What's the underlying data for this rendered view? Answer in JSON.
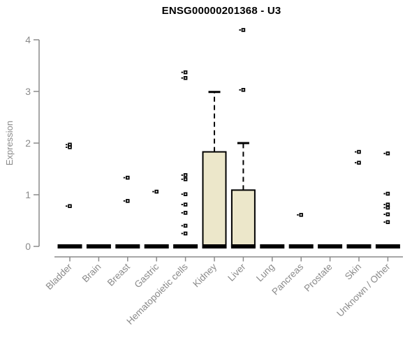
{
  "title": "ENSG00000201368 - U3",
  "y_axis_label": "Expression",
  "chart_data": {
    "type": "boxplot",
    "title": "ENSG00000201368 - U3",
    "ylabel": "Expression",
    "xlabel": "",
    "ylim": [
      0,
      4
    ],
    "yticks": [
      0,
      1,
      2,
      3,
      4
    ],
    "grid": false,
    "legend": false,
    "box_fill_color": "#ECE7CA",
    "box_border_color": "#000000",
    "axis_color": "#8A8A8A",
    "tick_label_color": "#8A8A8A",
    "categories": [
      "Bladder",
      "Brain",
      "Breast",
      "Gastric",
      "Hematopoietic cells",
      "Kidney",
      "Liver",
      "Lung",
      "Pancreas",
      "Prostate",
      "Skin",
      "Unknown / Other"
    ],
    "series": [
      {
        "category": "Bladder",
        "q1": 0,
        "median": 0,
        "q3": 0,
        "whisker_low": 0,
        "whisker_high": 0,
        "outliers": [
          1.97,
          1.92,
          0.78
        ]
      },
      {
        "category": "Brain",
        "q1": 0,
        "median": 0,
        "q3": 0,
        "whisker_low": 0,
        "whisker_high": 0,
        "outliers": []
      },
      {
        "category": "Breast",
        "q1": 0,
        "median": 0,
        "q3": 0,
        "whisker_low": 0,
        "whisker_high": 0,
        "outliers": [
          1.33,
          0.88
        ]
      },
      {
        "category": "Gastric",
        "q1": 0,
        "median": 0,
        "q3": 0,
        "whisker_low": 0,
        "whisker_high": 0,
        "outliers": [
          1.06
        ]
      },
      {
        "category": "Hematopoietic cells",
        "q1": 0,
        "median": 0,
        "q3": 0,
        "whisker_low": 0,
        "whisker_high": 0,
        "outliers": [
          3.37,
          3.26,
          1.38,
          1.3,
          1.01,
          0.81,
          0.65,
          0.4,
          0.25
        ]
      },
      {
        "category": "Kidney",
        "q1": 0,
        "median": 0,
        "q3": 1.83,
        "whisker_low": 0,
        "whisker_high": 2.99,
        "outliers": []
      },
      {
        "category": "Liver",
        "q1": 0,
        "median": 0,
        "q3": 1.09,
        "whisker_low": 0,
        "whisker_high": 2.0,
        "outliers": [
          4.19,
          3.03
        ]
      },
      {
        "category": "Lung",
        "q1": 0,
        "median": 0,
        "q3": 0,
        "whisker_low": 0,
        "whisker_high": 0,
        "outliers": []
      },
      {
        "category": "Pancreas",
        "q1": 0,
        "median": 0,
        "q3": 0,
        "whisker_low": 0,
        "whisker_high": 0,
        "outliers": [
          0.61
        ]
      },
      {
        "category": "Prostate",
        "q1": 0,
        "median": 0,
        "q3": 0,
        "whisker_low": 0,
        "whisker_high": 0,
        "outliers": []
      },
      {
        "category": "Skin",
        "q1": 0,
        "median": 0,
        "q3": 0,
        "whisker_low": 0,
        "whisker_high": 0,
        "outliers": [
          1.83,
          1.62
        ]
      },
      {
        "category": "Unknown / Other",
        "q1": 0,
        "median": 0,
        "q3": 0,
        "whisker_low": 0,
        "whisker_high": 0,
        "outliers": [
          1.8,
          1.02,
          0.81,
          0.75,
          0.62,
          0.47
        ]
      }
    ]
  }
}
